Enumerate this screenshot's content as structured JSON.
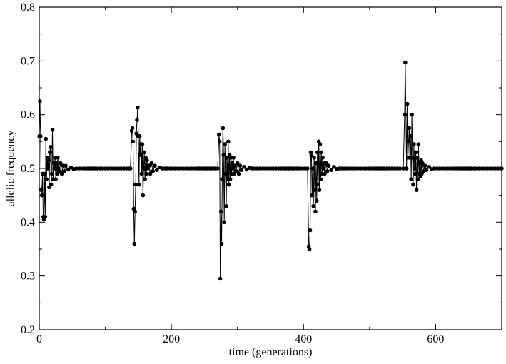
{
  "chart_data": {
    "type": "line",
    "x_label": "time (generations)",
    "y_label": "allelic frequency",
    "xlim": [
      0,
      700
    ],
    "ylim": [
      0.2,
      0.8
    ],
    "xticks": [
      0,
      200,
      400,
      600
    ],
    "xminorticks": [
      100,
      300,
      500,
      700
    ],
    "yticks": [
      0.2,
      0.3,
      0.4,
      0.5,
      0.6,
      0.7,
      0.8
    ],
    "yminorticks": [
      0.25,
      0.35,
      0.45,
      0.55,
      0.65,
      0.75
    ],
    "series": [
      {
        "color": "#000000",
        "x": [
          0,
          1,
          2,
          3,
          4,
          5,
          6,
          7,
          8,
          9,
          10,
          11,
          12,
          13,
          14,
          15,
          16,
          17,
          18,
          19,
          20,
          21,
          22,
          23,
          24,
          25,
          26,
          27,
          28,
          29,
          30,
          32,
          34,
          36,
          38,
          40,
          44,
          48,
          52,
          56,
          60,
          64,
          68,
          72,
          76,
          80,
          84,
          88,
          92,
          96,
          100,
          104,
          108,
          112,
          116,
          120,
          124,
          128,
          132,
          136,
          138,
          140,
          141,
          142,
          143,
          144,
          145,
          146,
          147,
          148,
          149,
          150,
          151,
          152,
          153,
          154,
          155,
          156,
          157,
          158,
          159,
          160,
          161,
          162,
          163,
          164,
          166,
          168,
          170,
          172,
          175,
          178,
          182,
          186,
          190,
          194,
          198,
          202,
          206,
          210,
          214,
          218,
          222,
          226,
          230,
          234,
          238,
          242,
          246,
          250,
          254,
          258,
          262,
          266,
          270,
          272,
          273,
          274,
          275,
          276,
          277,
          278,
          279,
          280,
          281,
          282,
          283,
          284,
          285,
          286,
          287,
          288,
          289,
          290,
          291,
          292,
          293,
          294,
          295,
          296,
          298,
          300,
          302,
          304,
          306,
          310,
          314,
          318,
          322,
          326,
          330,
          334,
          338,
          342,
          346,
          350,
          354,
          358,
          362,
          366,
          370,
          374,
          378,
          382,
          386,
          390,
          394,
          398,
          402,
          406,
          408,
          409,
          410,
          411,
          412,
          413,
          414,
          415,
          416,
          417,
          418,
          419,
          420,
          421,
          422,
          423,
          424,
          425,
          426,
          427,
          428,
          429,
          430,
          431,
          432,
          434,
          436,
          438,
          442,
          446,
          450,
          454,
          458,
          462,
          466,
          470,
          474,
          478,
          482,
          486,
          490,
          494,
          498,
          502,
          506,
          510,
          514,
          518,
          522,
          526,
          530,
          534,
          538,
          542,
          546,
          551,
          553,
          554,
          555,
          556,
          557,
          558,
          559,
          560,
          561,
          562,
          563,
          564,
          565,
          566,
          567,
          568,
          569,
          570,
          571,
          572,
          573,
          574,
          575,
          576,
          577,
          578,
          579,
          580,
          582,
          584,
          586,
          590,
          594,
          598,
          602,
          606,
          610,
          614,
          618,
          622,
          626,
          630,
          634,
          638,
          642,
          646,
          650,
          654,
          658,
          662,
          666,
          670,
          674,
          678,
          682,
          686,
          690,
          694,
          698,
          700
        ],
        "values": [
          0.56,
          0.625,
          0.56,
          0.46,
          0.45,
          0.49,
          0.41,
          0.405,
          0.49,
          0.41,
          0.555,
          0.48,
          0.52,
          0.5,
          0.515,
          0.465,
          0.53,
          0.54,
          0.47,
          0.49,
          0.572,
          0.48,
          0.51,
          0.5,
          0.52,
          0.48,
          0.51,
          0.49,
          0.52,
          0.5,
          0.495,
          0.51,
          0.49,
          0.505,
          0.495,
          0.505,
          0.498,
          0.502,
          0.499,
          0.5,
          0.5,
          0.5,
          0.5,
          0.5,
          0.5,
          0.5,
          0.5,
          0.5,
          0.5,
          0.5,
          0.5,
          0.5,
          0.5,
          0.5,
          0.5,
          0.5,
          0.5,
          0.5,
          0.5,
          0.5,
          0.5,
          0.57,
          0.575,
          0.55,
          0.425,
          0.36,
          0.42,
          0.47,
          0.565,
          0.59,
          0.613,
          0.56,
          0.47,
          0.56,
          0.525,
          0.545,
          0.49,
          0.545,
          0.45,
          0.5,
          0.53,
          0.48,
          0.52,
          0.49,
          0.515,
          0.5,
          0.505,
          0.49,
          0.51,
          0.495,
          0.505,
          0.497,
          0.502,
          0.5,
          0.5,
          0.5,
          0.5,
          0.5,
          0.5,
          0.5,
          0.5,
          0.5,
          0.5,
          0.5,
          0.5,
          0.5,
          0.5,
          0.5,
          0.5,
          0.5,
          0.5,
          0.5,
          0.5,
          0.5,
          0.5,
          0.563,
          0.55,
          0.295,
          0.42,
          0.36,
          0.48,
          0.575,
          0.525,
          0.4,
          0.545,
          0.49,
          0.43,
          0.52,
          0.48,
          0.55,
          0.47,
          0.525,
          0.48,
          0.52,
          0.49,
          0.51,
          0.5,
          0.52,
          0.49,
          0.505,
          0.495,
          0.51,
          0.49,
          0.505,
          0.497,
          0.503,
          0.498,
          0.501,
          0.5,
          0.5,
          0.5,
          0.5,
          0.5,
          0.5,
          0.5,
          0.5,
          0.5,
          0.5,
          0.5,
          0.5,
          0.5,
          0.5,
          0.5,
          0.5,
          0.5,
          0.5,
          0.5,
          0.5,
          0.5,
          0.5,
          0.355,
          0.35,
          0.385,
          0.53,
          0.525,
          0.45,
          0.5,
          0.43,
          0.52,
          0.46,
          0.42,
          0.51,
          0.44,
          0.53,
          0.47,
          0.55,
          0.46,
          0.545,
          0.48,
          0.53,
          0.49,
          0.52,
          0.5,
          0.51,
          0.49,
          0.51,
          0.495,
          0.505,
          0.497,
          0.503,
          0.499,
          0.5,
          0.5,
          0.5,
          0.5,
          0.5,
          0.5,
          0.5,
          0.5,
          0.5,
          0.5,
          0.5,
          0.5,
          0.5,
          0.5,
          0.5,
          0.5,
          0.5,
          0.5,
          0.5,
          0.5,
          0.5,
          0.5,
          0.5,
          0.5,
          0.5,
          0.6,
          0.697,
          0.6,
          0.5,
          0.62,
          0.52,
          0.55,
          0.575,
          0.52,
          0.56,
          0.48,
          0.6,
          0.52,
          0.47,
          0.545,
          0.5,
          0.49,
          0.53,
          0.46,
          0.52,
          0.48,
          0.545,
          0.49,
          0.51,
          0.485,
          0.515,
          0.49,
          0.51,
          0.495,
          0.505,
          0.497,
          0.503,
          0.499,
          0.5,
          0.5,
          0.5,
          0.5,
          0.5,
          0.5,
          0.5,
          0.5,
          0.5,
          0.5,
          0.5,
          0.5,
          0.5,
          0.5,
          0.5,
          0.5,
          0.5,
          0.5,
          0.5,
          0.5,
          0.5,
          0.5,
          0.5,
          0.5,
          0.5,
          0.5,
          0.5
        ]
      }
    ]
  }
}
